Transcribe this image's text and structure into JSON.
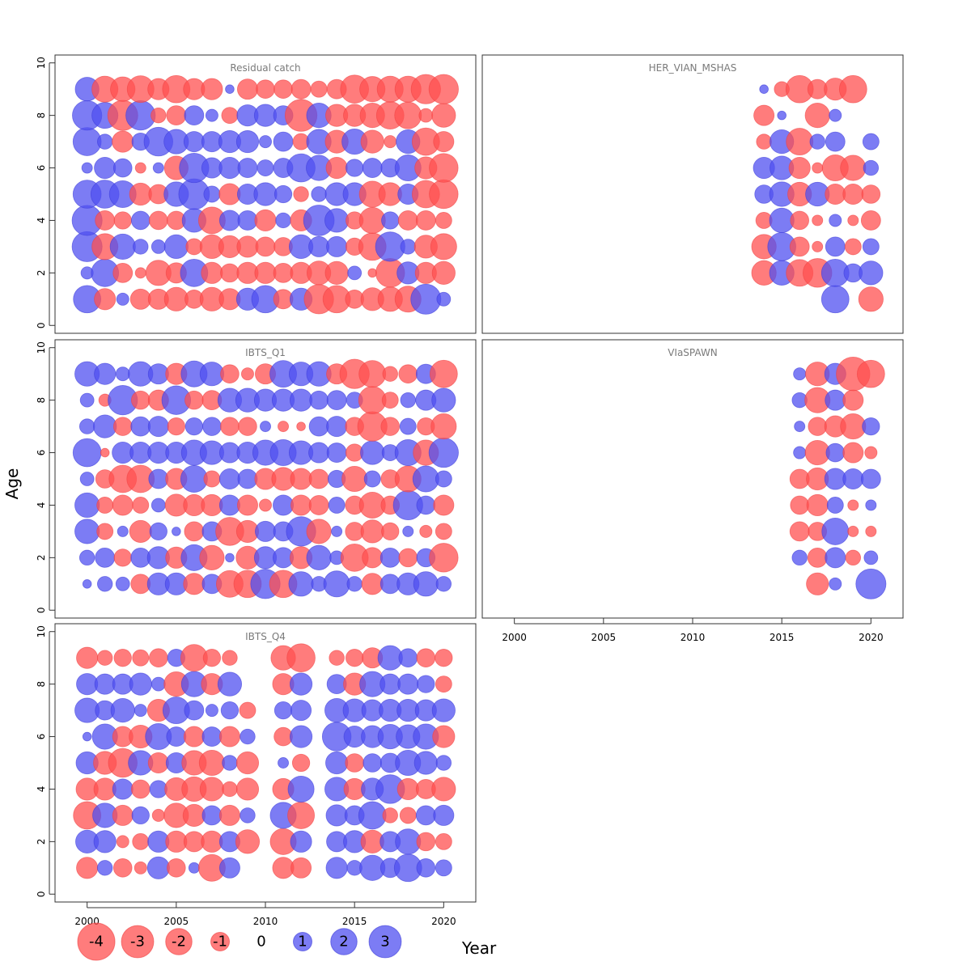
{
  "chart_data": {
    "type": "scatter",
    "subtype": "bubble",
    "xlabel": "Year",
    "ylabel": "Age",
    "xlim": [
      1998.2,
      2021.8
    ],
    "ylim": [
      -0.3,
      10.3
    ],
    "x_ticks": [
      2000,
      2005,
      2010,
      2015,
      2020
    ],
    "y_ticks": [
      0,
      2,
      4,
      6,
      8,
      10
    ],
    "colors": {
      "negative": "#FF5050",
      "positive": "#5050F0"
    },
    "legend": {
      "position": "bottom-left",
      "items": [
        {
          "label": "-4",
          "value": -4
        },
        {
          "label": "-3",
          "value": -3
        },
        {
          "label": "-2",
          "value": -2
        },
        {
          "label": "-1",
          "value": -1
        },
        {
          "label": "0",
          "value": 0
        },
        {
          "label": "1",
          "value": 1
        },
        {
          "label": "2",
          "value": 2
        },
        {
          "label": "3",
          "value": 3
        }
      ]
    },
    "panels": [
      {
        "title": "Residual catch",
        "residuals": {
          "ages": [
            1,
            2,
            3,
            4,
            5,
            6,
            7,
            8,
            9
          ],
          "years": [
            2000,
            2001,
            2002,
            2003,
            2004,
            2005,
            2006,
            2007,
            2008,
            2009,
            2010,
            2011,
            2012,
            2013,
            2014,
            2015,
            2016,
            2017,
            2018,
            2019,
            2020
          ],
          "values": [
            [
              2.0,
              -1.2,
              0.4,
              -1.1,
              -1.1,
              -1.5,
              -0.9,
              -1.5,
              -1.2,
              1.3,
              2.0,
              -1.0,
              1.3,
              -2.3,
              -2.0,
              -0.9,
              -1.4,
              -1.6,
              -1.8,
              2.4,
              0.5
            ],
            [
              0.4,
              2.0,
              -1.0,
              -0.3,
              -1.7,
              -1.1,
              2.0,
              -1.2,
              -0.9,
              -1.2,
              -1.2,
              -1.0,
              -1.2,
              -1.5,
              -1.4,
              0.5,
              -0.2,
              -2.2,
              1.3,
              -1.2,
              -1.4
            ],
            [
              2.4,
              -1.8,
              1.7,
              0.6,
              0.5,
              1.5,
              -0.7,
              -1.5,
              -1.3,
              -1.2,
              -1.0,
              -0.9,
              1.5,
              1.1,
              1.1,
              -0.8,
              -2.0,
              2.3,
              0.6,
              -1.4,
              -1.8
            ],
            [
              2.4,
              -1.0,
              -0.8,
              0.9,
              -0.9,
              -0.9,
              1.5,
              -1.9,
              1.1,
              1.0,
              -1.2,
              0.6,
              -1.2,
              2.5,
              1.5,
              -0.8,
              -1.8,
              0.8,
              -1.0,
              -1.0,
              -0.7
            ],
            [
              2.1,
              2.1,
              1.9,
              -1.3,
              -1.0,
              1.6,
              2.5,
              0.7,
              -1.2,
              1.1,
              1.4,
              0.8,
              -0.6,
              0.6,
              1.4,
              1.4,
              -1.8,
              -1.4,
              1.1,
              -2.0,
              -2.2
            ],
            [
              0.3,
              1.2,
              0.9,
              -0.3,
              0.3,
              -1.5,
              2.3,
              1.1,
              1.2,
              1.0,
              0.7,
              1.0,
              2.1,
              1.7,
              -1.2,
              0.8,
              1.0,
              0.9,
              1.8,
              -1.3,
              -2.2
            ],
            [
              2.1,
              0.6,
              -1.2,
              0.8,
              2.2,
              1.6,
              1.1,
              1.1,
              1.3,
              1.3,
              0.4,
              1.0,
              -0.7,
              1.6,
              -1.4,
              1.7,
              -1.4,
              -0.4,
              1.5,
              -2.0,
              -1.1
            ],
            [
              2.3,
              1.8,
              -2.4,
              2.3,
              -0.6,
              -1.0,
              1.0,
              0.4,
              -0.7,
              1.2,
              1.3,
              1.0,
              -2.7,
              1.6,
              -1.3,
              -1.3,
              -1.6,
              -2.0,
              -1.9,
              -0.5,
              -1.5
            ],
            [
              1.5,
              -1.8,
              -1.6,
              -1.9,
              -1.2,
              -2.0,
              -1.2,
              -1.2,
              0.2,
              -1.1,
              -0.9,
              -0.9,
              -1.0,
              -0.7,
              -1.0,
              -2.1,
              -1.7,
              -1.8,
              -1.8,
              -2.3,
              -2.3
            ]
          ]
        }
      },
      {
        "title": "HER_VIAN_MSHAS",
        "residuals": {
          "ages": [
            1,
            2,
            3,
            4,
            5,
            6,
            7,
            8,
            9
          ],
          "years": [
            2014,
            2015,
            2016,
            2017,
            2018,
            2019,
            2020
          ],
          "values": [
            [
              null,
              null,
              null,
              null,
              2.0,
              null,
              -1.6
            ],
            [
              -1.6,
              1.6,
              -1.9,
              -2.2,
              2.0,
              0.9,
              1.5
            ],
            [
              -1.6,
              2.1,
              -1.0,
              -0.3,
              1.0,
              -0.7,
              0.7
            ],
            [
              -0.7,
              1.6,
              -0.9,
              -0.3,
              0.4,
              -0.3,
              -1.0
            ],
            [
              0.9,
              1.6,
              -1.5,
              1.5,
              -1.1,
              -1.1,
              -0.9
            ],
            [
              1.2,
              1.5,
              -1.2,
              -0.3,
              -1.8,
              -1.7,
              0.6
            ],
            [
              -0.6,
              1.5,
              -1.9,
              0.6,
              1.0,
              null,
              0.7
            ],
            [
              -1.1,
              0.2,
              null,
              -1.6,
              0.4,
              null,
              null
            ],
            [
              0.2,
              -0.6,
              -2.0,
              -1.0,
              -1.3,
              -2.0,
              null
            ]
          ]
        }
      },
      {
        "title": "IBTS_Q1",
        "residuals": {
          "ages": [
            1,
            2,
            3,
            4,
            5,
            6,
            7,
            8,
            9
          ],
          "years": [
            2000,
            2001,
            2002,
            2003,
            2004,
            2005,
            2006,
            2007,
            2008,
            2009,
            2010,
            2011,
            2012,
            2013,
            2014,
            2015,
            2016,
            2017,
            2018,
            2019,
            2020
          ],
          "values": [
            [
              0.2,
              0.6,
              0.5,
              -1.0,
              1.3,
              1.3,
              -1.2,
              1.0,
              -1.9,
              -2.0,
              2.3,
              -2.0,
              1.6,
              0.6,
              1.8,
              0.6,
              -1.2,
              1.0,
              1.3,
              1.6,
              0.6
            ],
            [
              0.6,
              1.0,
              -0.8,
              1.0,
              1.3,
              -1.2,
              1.8,
              -1.6,
              0.2,
              -1.4,
              1.3,
              1.1,
              -1.3,
              1.6,
              0.5,
              -2.0,
              -1.1,
              1.0,
              -0.9,
              0.9,
              -2.2
            ],
            [
              1.6,
              -0.7,
              0.3,
              -1.3,
              0.8,
              0.2,
              -1.0,
              1.0,
              -2.1,
              -1.3,
              1.1,
              1.0,
              2.3,
              -1.6,
              0.3,
              -0.9,
              -1.4,
              -0.8,
              0.3,
              -0.4,
              -0.7
            ],
            [
              1.6,
              -0.7,
              -1.1,
              -0.7,
              0.5,
              -1.3,
              -1.2,
              -1.2,
              1.1,
              -1.1,
              -0.4,
              1.1,
              -1.1,
              -1.0,
              0.7,
              -0.9,
              -1.8,
              -0.9,
              2.3,
              0.9,
              -1.1
            ],
            [
              0.5,
              -0.9,
              -2.0,
              -2.0,
              1.0,
              -1.2,
              1.9,
              -0.7,
              1.1,
              1.0,
              -1.2,
              -1.4,
              -1.2,
              -1.0,
              0.8,
              -1.7,
              0.7,
              -0.9,
              -1.8,
              1.8,
              0.7
            ],
            [
              2.1,
              -0.2,
              1.2,
              1.2,
              1.2,
              1.2,
              1.7,
              1.5,
              1.1,
              1.2,
              1.7,
              1.8,
              1.5,
              1.1,
              1.0,
              -0.8,
              1.5,
              0.7,
              1.8,
              -1.7,
              2.3
            ],
            [
              0.6,
              1.4,
              -0.9,
              1.0,
              1.1,
              -0.8,
              0.8,
              0.9,
              -0.9,
              -0.9,
              0.3,
              -0.3,
              -0.2,
              1.0,
              1.1,
              -0.9,
              -2.3,
              -0.9,
              0.7,
              -0.8,
              -1.7
            ],
            [
              0.5,
              -0.4,
              2.3,
              -0.9,
              -1.1,
              2.2,
              -0.9,
              -1.0,
              1.5,
              1.5,
              1.3,
              1.3,
              1.3,
              0.9,
              1.0,
              0.7,
              -2.0,
              -0.7,
              0.6,
              1.1,
              1.5
            ],
            [
              1.6,
              1.2,
              0.5,
              1.6,
              1.1,
              -1.2,
              1.8,
              1.5,
              -0.9,
              -0.4,
              -1.1,
              1.9,
              1.5,
              1.6,
              -1.1,
              -2.3,
              -1.9,
              -0.6,
              -0.9,
              1.0,
              -2.0
            ]
          ]
        }
      },
      {
        "title": "VIaSPAWN",
        "residuals": {
          "ages": [
            1,
            2,
            3,
            4,
            5,
            6,
            7,
            8,
            9
          ],
          "years": [
            2016,
            2017,
            2018,
            2019,
            2020
          ],
          "values": [
            [
              null,
              -1.3,
              0.4,
              null,
              2.4
            ],
            [
              0.6,
              -1.0,
              1.1,
              -0.6,
              0.5
            ],
            [
              -1.0,
              -0.9,
              1.9,
              -0.3,
              -0.3
            ],
            [
              -0.9,
              -1.2,
              0.7,
              -0.3,
              0.3
            ],
            [
              -1.0,
              -1.3,
              1.2,
              1.1,
              1.0
            ],
            [
              0.4,
              -1.6,
              0.9,
              -1.1,
              -0.4
            ],
            [
              0.3,
              -0.9,
              -1.2,
              -1.7,
              0.8
            ],
            [
              0.6,
              -1.7,
              1.1,
              -1.1,
              null
            ],
            [
              0.4,
              -1.5,
              1.2,
              -3.0,
              -2.0
            ]
          ]
        }
      },
      {
        "title": "IBTS_Q4",
        "residuals": {
          "ages": [
            1,
            2,
            3,
            4,
            5,
            6,
            7,
            8,
            9
          ],
          "years": [
            2000,
            2001,
            2002,
            2003,
            2004,
            2005,
            2006,
            2007,
            2008,
            2009,
            2010,
            2011,
            2012,
            2013,
            2014,
            2015,
            2016,
            2017,
            2018,
            2019,
            2020
          ],
          "values": [
            [
              -1.2,
              0.6,
              -0.9,
              -0.4,
              1.3,
              -0.9,
              0.3,
              -1.9,
              1.1,
              null,
              null,
              -1.2,
              -1.1,
              null,
              1.2,
              0.6,
              1.7,
              1.0,
              2.0,
              0.9,
              0.7
            ],
            [
              1.4,
              1.3,
              -0.4,
              -0.7,
              1.2,
              -1.2,
              -1.1,
              -1.2,
              1.1,
              -1.5,
              null,
              -1.8,
              1.2,
              null,
              1.1,
              1.3,
              -1.4,
              1.1,
              1.7,
              -0.9,
              -0.7
            ],
            [
              -2.0,
              1.6,
              -1.1,
              0.8,
              -0.4,
              -1.6,
              -1.3,
              1.0,
              -1.1,
              0.6,
              null,
              1.8,
              -1.9,
              null,
              1.2,
              1.0,
              2.0,
              -0.6,
              -0.7,
              1.0,
              1.1
            ],
            [
              -1.3,
              -1.3,
              1.1,
              -0.9,
              0.8,
              -1.4,
              -1.6,
              -1.5,
              -0.6,
              -1.3,
              null,
              -1.2,
              1.8,
              null,
              1.5,
              -1.2,
              1.3,
              2.2,
              -1.2,
              -1.0,
              -1.5
            ],
            [
              1.3,
              -1.4,
              -2.2,
              1.6,
              -1.1,
              1.1,
              -1.6,
              -1.7,
              0.6,
              -1.3,
              null,
              0.3,
              -0.8,
              null,
              1.3,
              -0.9,
              0.9,
              1.0,
              1.7,
              1.4,
              0.6
            ],
            [
              0.2,
              1.7,
              -1.1,
              -1.4,
              1.8,
              1.0,
              -1.1,
              1.0,
              -1.1,
              0.6,
              null,
              -0.9,
              1.3,
              null,
              2.2,
              1.2,
              1.3,
              1.6,
              1.5,
              1.7,
              -1.3
            ],
            [
              1.6,
              1.0,
              1.5,
              0.4,
              -1.3,
              1.9,
              1.0,
              0.4,
              0.8,
              -0.7,
              null,
              0.8,
              1.1,
              null,
              1.5,
              1.4,
              1.2,
              1.3,
              1.3,
              1.2,
              1.4
            ],
            [
              1.2,
              1.1,
              1.1,
              1.3,
              0.5,
              -1.6,
              1.7,
              -1.2,
              1.5,
              null,
              null,
              -1.2,
              1.3,
              null,
              1.0,
              -1.3,
              1.7,
              1.1,
              1.1,
              0.8,
              -0.7
            ],
            [
              -1.2,
              -0.6,
              -0.8,
              -0.7,
              -0.9,
              0.8,
              -1.9,
              -0.8,
              -0.6,
              null,
              null,
              -1.6,
              -2.1,
              null,
              -0.6,
              -0.8,
              -1.1,
              1.6,
              0.9,
              -0.9,
              -0.8
            ]
          ]
        }
      }
    ]
  }
}
